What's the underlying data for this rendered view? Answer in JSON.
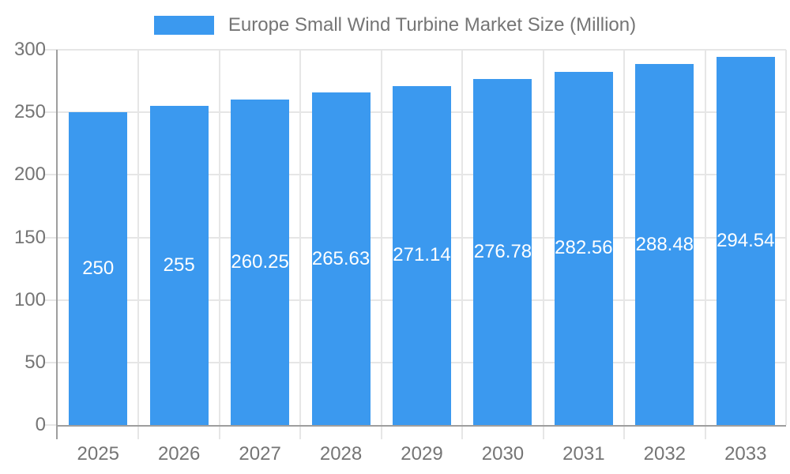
{
  "legend": {
    "label": "Europe Small Wind Turbine Market Size (Million)",
    "swatch_color": "#3B99EF"
  },
  "chart_data": {
    "type": "bar",
    "title": "Europe Small Wind Turbine Market Size (Million)",
    "categories": [
      "2025",
      "2026",
      "2027",
      "2028",
      "2029",
      "2030",
      "2031",
      "2032",
      "2033"
    ],
    "values": [
      250,
      255,
      260.25,
      265.63,
      271.14,
      276.78,
      282.56,
      288.48,
      294.54
    ],
    "value_labels": [
      "250",
      "255",
      "260.25",
      "265.63",
      "271.14",
      "276.78",
      "282.56",
      "288.48",
      "294.54"
    ],
    "xlabel": "",
    "ylabel": "",
    "ylim": [
      0,
      300
    ],
    "yticks": [
      0,
      50,
      100,
      150,
      200,
      250,
      300
    ],
    "grid": true,
    "legend_position": "top",
    "bar_color": "#3B99EF",
    "grid_color": "#e6e6e6",
    "axis_color": "#9e9e9e",
    "label_color": "#757575",
    "value_label_color": "#ffffff"
  }
}
